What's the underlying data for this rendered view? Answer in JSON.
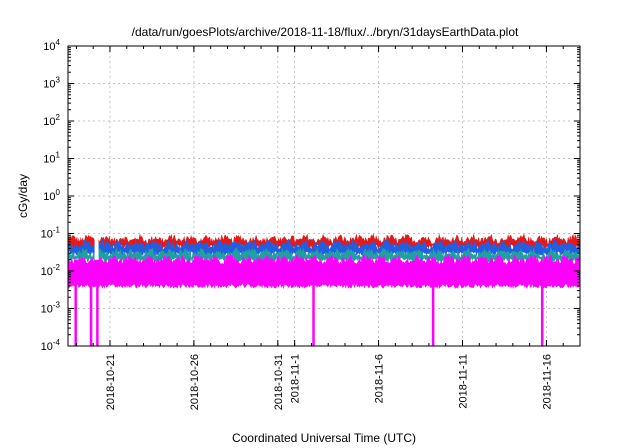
{
  "chart_data": {
    "type": "area",
    "title": "/data/run/goesPlots/archive/2018-11-18/flux/../bryn/31daysEarthData.plot",
    "xlabel": "Coordinated Universal Time (UTC)",
    "ylabel": "cGy/day",
    "yscale": "log",
    "ylim": [
      0.0001,
      10000
    ],
    "xlim": [
      "2018-10-18T12:00",
      "2018-11-18T00:00"
    ],
    "grid": true,
    "y_ticks": [
      {
        "value": 0.0001,
        "label_base": "10",
        "label_exp": "-4"
      },
      {
        "value": 0.001,
        "label_base": "10",
        "label_exp": "-3"
      },
      {
        "value": 0.01,
        "label_base": "10",
        "label_exp": "-2"
      },
      {
        "value": 0.1,
        "label_base": "10",
        "label_exp": "-1"
      },
      {
        "value": 1,
        "label_base": "10",
        "label_exp": "0"
      },
      {
        "value": 10,
        "label_base": "10",
        "label_exp": "1"
      },
      {
        "value": 100,
        "label_base": "10",
        "label_exp": "2"
      },
      {
        "value": 1000,
        "label_base": "10",
        "label_exp": "3"
      },
      {
        "value": 10000,
        "label_base": "10",
        "label_exp": "4"
      }
    ],
    "x_ticks": [
      {
        "date": "2018-10-21",
        "label": "2018-10-21"
      },
      {
        "date": "2018-10-26",
        "label": "2018-10-26"
      },
      {
        "date": "2018-10-31",
        "label": "2018-10-31"
      },
      {
        "date": "2018-11-01",
        "label": "2018-11-1"
      },
      {
        "date": "2018-11-06",
        "label": "2018-11-6"
      },
      {
        "date": "2018-11-11",
        "label": "2018-11-11"
      },
      {
        "date": "2018-11-16",
        "label": "2018-11-16"
      }
    ],
    "series": [
      {
        "color": "#e31a1c",
        "typical_upper": 0.07,
        "typical_lower": 0.045
      },
      {
        "color": "#2060e0",
        "typical_upper": 0.05,
        "typical_lower": 0.03
      },
      {
        "color": "#20a0a0",
        "typical_upper": 0.03,
        "typical_lower": 0.02
      },
      {
        "color": "#ff00ff",
        "typical_upper": 0.02,
        "typical_lower": 0.004
      }
    ],
    "dropouts": [
      "2018-10-18T23:00",
      "2018-10-19T21:00",
      "2018-10-20T06:00",
      "2018-11-02T03:00",
      "2018-11-09T06:00",
      "2018-11-15T18:00"
    ]
  }
}
